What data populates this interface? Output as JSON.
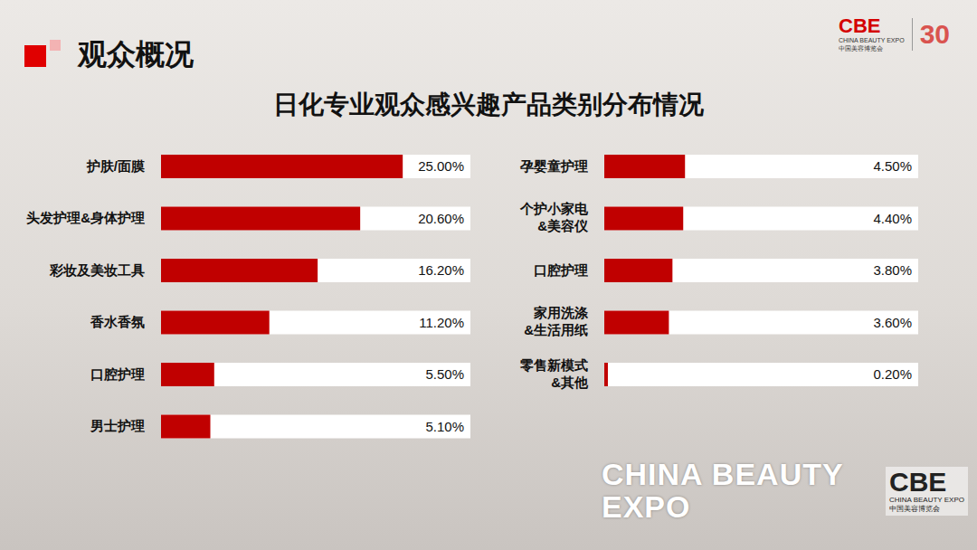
{
  "header": {
    "section": "观众概况",
    "title": "日化专业观众感兴趣产品类别分布情况"
  },
  "branding": {
    "logo": "CBE",
    "logo_caption": "CHINA BEAUTY EXPO",
    "logo_caption_cn": "中国美容博览会",
    "anniversary": "30",
    "watermark": "CHINA BEAUTY EXPO"
  },
  "chart_data": [
    {
      "type": "bar",
      "orientation": "horizontal",
      "categories": [
        "护肤/面膜",
        "头发护理&身体护理",
        "彩妆及美妆工具",
        "香水香氛",
        "口腔护理",
        "男士护理"
      ],
      "values": [
        25.0,
        20.6,
        16.2,
        11.2,
        5.5,
        5.1
      ],
      "value_labels": [
        "25.00%",
        "20.60%",
        "16.20%",
        "11.20%",
        "5.50%",
        "5.10%"
      ],
      "color": "#c00000",
      "xlim": [
        0,
        32
      ],
      "data_labels": true,
      "tick_labels": "y"
    },
    {
      "type": "bar",
      "orientation": "horizontal",
      "categories": [
        "孕婴童护理",
        "个护小家电&美容仪",
        "口腔护理",
        "家用洗涤&生活用纸",
        "零售新模式&其他"
      ],
      "values": [
        4.5,
        4.4,
        3.8,
        3.6,
        0.2
      ],
      "value_labels": [
        "4.50%",
        "4.40%",
        "3.80%",
        "3.60%",
        "0.20%"
      ],
      "color": "#c00000",
      "xlim": [
        0,
        17.5
      ],
      "data_labels": true,
      "tick_labels": "y"
    }
  ]
}
